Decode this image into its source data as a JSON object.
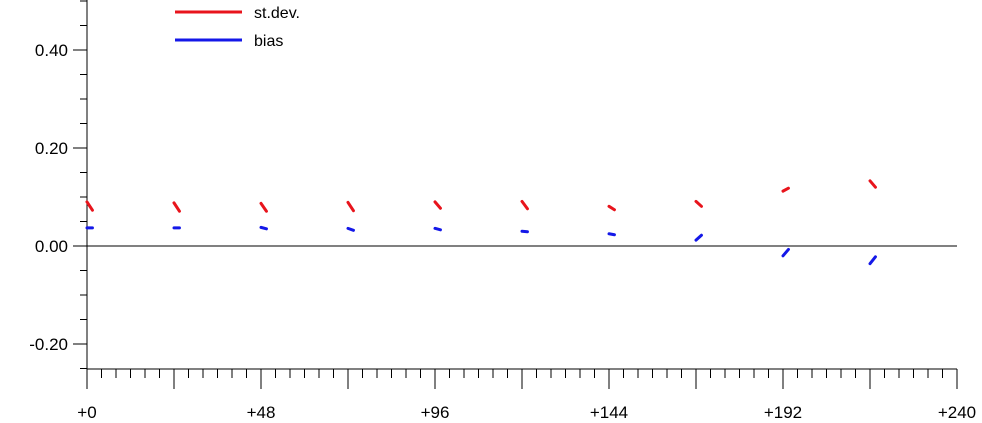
{
  "chart_data": {
    "type": "line",
    "x_ticks": [
      {
        "value": 0,
        "label": "+0"
      },
      {
        "value": 48,
        "label": "+48"
      },
      {
        "value": 96,
        "label": "+96"
      },
      {
        "value": 144,
        "label": "+144"
      },
      {
        "value": 192,
        "label": "+192"
      },
      {
        "value": 240,
        "label": "+240"
      }
    ],
    "y_ticks": [
      {
        "value": -0.2,
        "label": "-0.20"
      },
      {
        "value": 0.0,
        "label": "0.00"
      },
      {
        "value": 0.2,
        "label": "0.20"
      },
      {
        "value": 0.4,
        "label": "0.40"
      }
    ],
    "xlim": [
      0,
      240
    ],
    "ylim": [
      -0.25,
      0.5
    ],
    "x_minor_step": 4,
    "y_minor_step": 0.05,
    "zero_line": true,
    "legend_position": "top-left",
    "series": [
      {
        "name": "st.dev.",
        "color": "#e8141c",
        "segments": [
          [
            [
              0,
              0.09
            ],
            [
              1.5,
              0.073
            ]
          ],
          [
            [
              24,
              0.088
            ],
            [
              25.5,
              0.071
            ]
          ],
          [
            [
              48,
              0.087
            ],
            [
              49.5,
              0.071
            ]
          ],
          [
            [
              72,
              0.089
            ],
            [
              73.5,
              0.072
            ]
          ],
          [
            [
              96,
              0.09
            ],
            [
              97.5,
              0.077
            ]
          ],
          [
            [
              120,
              0.091
            ],
            [
              121.5,
              0.076
            ]
          ],
          [
            [
              144,
              0.081
            ],
            [
              145.5,
              0.074
            ]
          ],
          [
            [
              168,
              0.091
            ],
            [
              169.5,
              0.081
            ]
          ],
          [
            [
              192,
              0.112
            ],
            [
              193.5,
              0.118
            ]
          ],
          [
            [
              216,
              0.133
            ],
            [
              217.5,
              0.12
            ]
          ]
        ]
      },
      {
        "name": "bias",
        "color": "#1418e8",
        "segments": [
          [
            [
              0,
              0.037
            ],
            [
              1.5,
              0.037
            ]
          ],
          [
            [
              24,
              0.037
            ],
            [
              25.5,
              0.037
            ]
          ],
          [
            [
              48,
              0.038
            ],
            [
              49.5,
              0.035
            ]
          ],
          [
            [
              72,
              0.036
            ],
            [
              73.5,
              0.032
            ]
          ],
          [
            [
              96,
              0.036
            ],
            [
              97.5,
              0.033
            ]
          ],
          [
            [
              120,
              0.03
            ],
            [
              121.5,
              0.029
            ]
          ],
          [
            [
              144,
              0.025
            ],
            [
              145.5,
              0.023
            ]
          ],
          [
            [
              168,
              0.012
            ],
            [
              169.5,
              0.022
            ]
          ],
          [
            [
              192,
              -0.02
            ],
            [
              193.5,
              -0.007
            ]
          ],
          [
            [
              216,
              -0.036
            ],
            [
              217.5,
              -0.022
            ]
          ]
        ]
      }
    ]
  }
}
